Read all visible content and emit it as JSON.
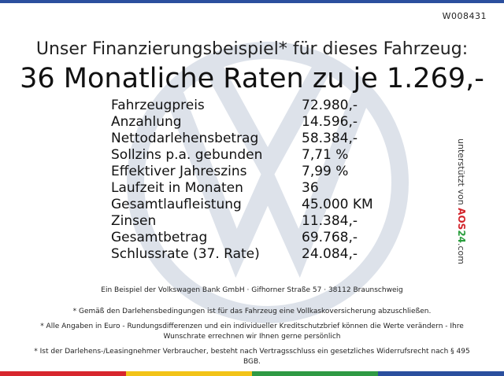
{
  "code": "W008431",
  "subheadline": "Unser Finanzierungsbeispiel* für dieses Fahrzeug:",
  "headline": "36 Monatliche Raten zu je 1.269,-",
  "rows": [
    {
      "label": "Fahrzeugpreis",
      "value": "72.980,-"
    },
    {
      "label": "Anzahlung",
      "value": "14.596,-"
    },
    {
      "label": "Nettodarlehensbetrag",
      "value": "58.384,-"
    },
    {
      "label": "Sollzins p.a. gebunden",
      "value": "7,71 %"
    },
    {
      "label": "Effektiver Jahreszins",
      "value": "7,99 %"
    },
    {
      "label": "Laufzeit in Monaten",
      "value": "36"
    },
    {
      "label": "Gesamtlaufleistung",
      "value": "45.000 KM"
    },
    {
      "label": "Zinsen",
      "value": "11.384,-"
    },
    {
      "label": "Gesamtbetrag",
      "value": "69.768,-"
    },
    {
      "label": "Schlussrate (37. Rate)",
      "value": "24.084,-"
    }
  ],
  "side_credit": {
    "text": "unterstützt von",
    "brand_a": "AOS",
    "brand_b": "24",
    "brand_c": ".com"
  },
  "bank_line": "Ein Beispiel der Volkswagen Bank GmbH · Gifhorner Straße 57 · 38112 Braunschweig",
  "notes": [
    "* Gemäß den Darlehensbedingungen ist für das Fahrzeug eine Vollkaskoversicherung abzuschließen.",
    "* Alle Angaben in Euro - Rundungsdifferenzen und ein individueller Kreditschutzbrief können die Werte verändern - Ihre Wunschrate errechnen wir Ihnen gerne persönlich",
    "* Ist der Darlehens-/Leasingnehmer Verbraucher, besteht nach Vertragsschluss ein gesetzliches Widerrufsrecht nach § 495 BGB."
  ],
  "colors": {
    "top_bar": "#2b4f9e",
    "watermark": "#dde2ea",
    "bottom_stripes": [
      "#d7262d",
      "#f2c318",
      "#2f9a44",
      "#2b4f9e"
    ]
  }
}
